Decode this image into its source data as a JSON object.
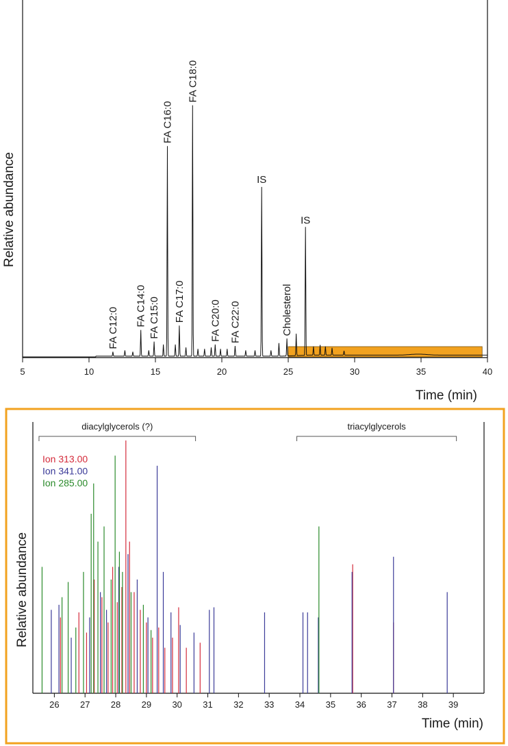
{
  "chart_data": [
    {
      "type": "line",
      "title": "",
      "xlabel": "Time (min)",
      "ylabel": "Relative abundance",
      "xlim": [
        5,
        40
      ],
      "ylim": [
        0,
        100
      ],
      "xticks": [
        "5",
        "10",
        "15",
        "20",
        "25",
        "30",
        "35",
        "40"
      ],
      "highlight_range": [
        25,
        39.6
      ],
      "highlight_color": "#f2a21f",
      "peaks": [
        {
          "x": 11.8,
          "y": 1.5,
          "label": "FA C12:0"
        },
        {
          "x": 12.7,
          "y": 2.0
        },
        {
          "x": 13.3,
          "y": 1.5
        },
        {
          "x": 13.9,
          "y": 9.0,
          "label": "FA C14:0"
        },
        {
          "x": 14.5,
          "y": 2.0
        },
        {
          "x": 14.9,
          "y": 5.0,
          "label": "FA C15:0"
        },
        {
          "x": 15.6,
          "y": 4.0
        },
        {
          "x": 15.9,
          "y": 72.0,
          "label": "FA C16:0"
        },
        {
          "x": 16.5,
          "y": 4.0
        },
        {
          "x": 16.8,
          "y": 10.5,
          "label": "FA C17:0"
        },
        {
          "x": 17.3,
          "y": 3.0
        },
        {
          "x": 17.8,
          "y": 86.0,
          "label": "FA C18:0"
        },
        {
          "x": 18.2,
          "y": 2.5
        },
        {
          "x": 18.7,
          "y": 2.5
        },
        {
          "x": 19.2,
          "y": 3.0
        },
        {
          "x": 19.5,
          "y": 4.0,
          "label": "FA C20:0"
        },
        {
          "x": 19.9,
          "y": 2.5
        },
        {
          "x": 20.4,
          "y": 2.5
        },
        {
          "x": 21.0,
          "y": 3.5,
          "label": "FA C22:0"
        },
        {
          "x": 21.8,
          "y": 2.0
        },
        {
          "x": 22.5,
          "y": 2.0
        },
        {
          "x": 23.0,
          "y": 58.0,
          "label": "IS"
        },
        {
          "x": 23.7,
          "y": 2.0
        },
        {
          "x": 24.3,
          "y": 4.5
        },
        {
          "x": 24.9,
          "y": 6.0,
          "label": "Cholesterol"
        },
        {
          "x": 25.6,
          "y": 7.5
        },
        {
          "x": 26.3,
          "y": 44.0,
          "label": "IS"
        },
        {
          "x": 26.9,
          "y": 3.0
        },
        {
          "x": 27.4,
          "y": 3.5
        },
        {
          "x": 27.8,
          "y": 3.0
        },
        {
          "x": 28.3,
          "y": 2.5
        },
        {
          "x": 29.2,
          "y": 1.5
        }
      ]
    },
    {
      "type": "line",
      "title": "",
      "xlabel": "Time (min)",
      "ylabel": "Relative abundance",
      "xlim": [
        25.3,
        40
      ],
      "ylim": [
        0,
        100
      ],
      "xticks": [
        "26",
        "27",
        "28",
        "29",
        "30",
        "31",
        "32",
        "33",
        "34",
        "35",
        "36",
        "37",
        "38",
        "39"
      ],
      "regions": [
        {
          "label": "diacylglycerols (?)",
          "x0": 25.5,
          "x1": 30.6
        },
        {
          "label": "triacylglycerols",
          "x0": 33.9,
          "x1": 39.1
        }
      ],
      "series": [
        {
          "name": "Ion 313.00",
          "color": "#d42a3a",
          "peaks": [
            {
              "x": 26.2,
              "y": 30
            },
            {
              "x": 26.8,
              "y": 32
            },
            {
              "x": 27.05,
              "y": 24
            },
            {
              "x": 27.3,
              "y": 45
            },
            {
              "x": 27.55,
              "y": 38
            },
            {
              "x": 27.75,
              "y": 28
            },
            {
              "x": 27.9,
              "y": 50
            },
            {
              "x": 28.05,
              "y": 36
            },
            {
              "x": 28.2,
              "y": 42
            },
            {
              "x": 28.33,
              "y": 100
            },
            {
              "x": 28.45,
              "y": 60
            },
            {
              "x": 28.6,
              "y": 40
            },
            {
              "x": 28.8,
              "y": 33
            },
            {
              "x": 29.0,
              "y": 28
            },
            {
              "x": 29.2,
              "y": 22
            },
            {
              "x": 29.4,
              "y": 26
            },
            {
              "x": 29.6,
              "y": 18
            },
            {
              "x": 29.85,
              "y": 22
            },
            {
              "x": 30.05,
              "y": 34
            },
            {
              "x": 30.3,
              "y": 18
            },
            {
              "x": 30.75,
              "y": 20
            },
            {
              "x": 35.72,
              "y": 51
            },
            {
              "x": 37.05,
              "y": 28
            }
          ]
        },
        {
          "name": "Ion 341.00",
          "color": "#3a3a98",
          "peaks": [
            {
              "x": 25.9,
              "y": 33
            },
            {
              "x": 26.15,
              "y": 35
            },
            {
              "x": 26.55,
              "y": 22
            },
            {
              "x": 27.15,
              "y": 30
            },
            {
              "x": 27.5,
              "y": 40
            },
            {
              "x": 27.7,
              "y": 33
            },
            {
              "x": 28.1,
              "y": 50
            },
            {
              "x": 28.4,
              "y": 55
            },
            {
              "x": 28.7,
              "y": 45
            },
            {
              "x": 29.05,
              "y": 30
            },
            {
              "x": 29.35,
              "y": 90
            },
            {
              "x": 29.55,
              "y": 48
            },
            {
              "x": 29.8,
              "y": 32
            },
            {
              "x": 30.1,
              "y": 27
            },
            {
              "x": 30.55,
              "y": 24
            },
            {
              "x": 31.05,
              "y": 33
            },
            {
              "x": 31.2,
              "y": 34
            },
            {
              "x": 32.85,
              "y": 32
            },
            {
              "x": 34.1,
              "y": 32
            },
            {
              "x": 34.25,
              "y": 32
            },
            {
              "x": 34.6,
              "y": 30
            },
            {
              "x": 35.7,
              "y": 48
            },
            {
              "x": 37.05,
              "y": 54
            },
            {
              "x": 38.8,
              "y": 40
            }
          ]
        },
        {
          "name": "Ion 285.00",
          "color": "#2a8a2a",
          "peaks": [
            {
              "x": 25.6,
              "y": 50
            },
            {
              "x": 26.25,
              "y": 38
            },
            {
              "x": 26.45,
              "y": 44
            },
            {
              "x": 26.7,
              "y": 26
            },
            {
              "x": 26.95,
              "y": 48
            },
            {
              "x": 27.2,
              "y": 71
            },
            {
              "x": 27.28,
              "y": 83
            },
            {
              "x": 27.42,
              "y": 60
            },
            {
              "x": 27.62,
              "y": 66
            },
            {
              "x": 27.85,
              "y": 45
            },
            {
              "x": 27.98,
              "y": 94
            },
            {
              "x": 28.12,
              "y": 56
            },
            {
              "x": 28.22,
              "y": 48
            },
            {
              "x": 28.5,
              "y": 40
            },
            {
              "x": 28.9,
              "y": 35
            },
            {
              "x": 29.15,
              "y": 25
            },
            {
              "x": 34.62,
              "y": 66
            }
          ]
        }
      ]
    }
  ]
}
